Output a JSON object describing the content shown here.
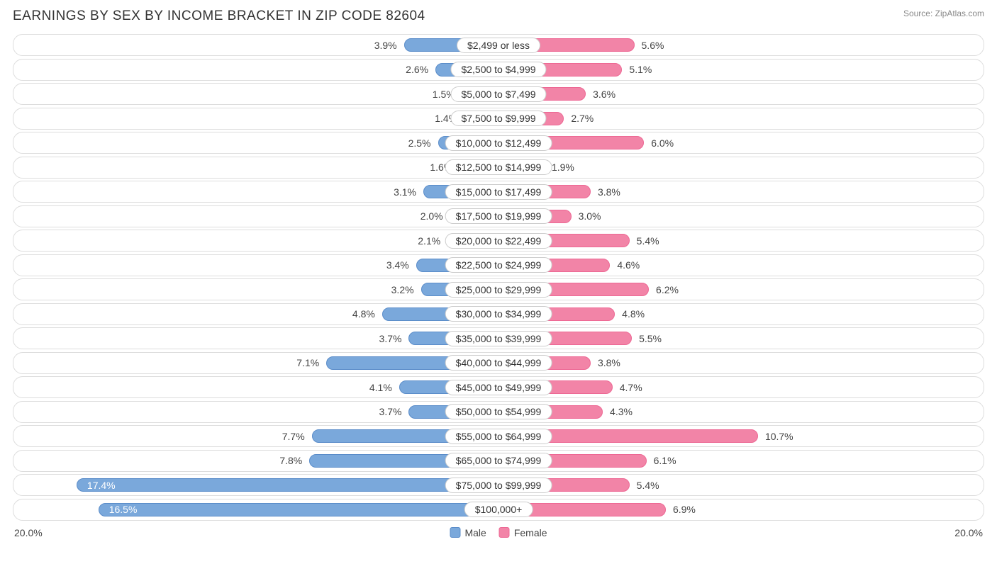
{
  "header": {
    "title": "EARNINGS BY SEX BY INCOME BRACKET IN ZIP CODE 82604",
    "source": "Source: ZipAtlas.com"
  },
  "chart": {
    "type": "diverging-bar",
    "axis_max_pct": 20.0,
    "axis_label_left": "20.0%",
    "axis_label_right": "20.0%",
    "colors": {
      "male_fill": "#7aa8db",
      "male_border": "#5a8cc9",
      "female_fill": "#f284a7",
      "female_border": "#ed6894",
      "row_border": "#dddddd",
      "background": "#ffffff",
      "text": "#444444",
      "label_border": "#cccccc"
    },
    "legend": {
      "male": "Male",
      "female": "Female"
    },
    "rows": [
      {
        "bracket": "$2,499 or less",
        "male": 3.9,
        "female": 5.6,
        "male_inside": false,
        "female_inside": false
      },
      {
        "bracket": "$2,500 to $4,999",
        "male": 2.6,
        "female": 5.1,
        "male_inside": false,
        "female_inside": false
      },
      {
        "bracket": "$5,000 to $7,499",
        "male": 1.5,
        "female": 3.6,
        "male_inside": false,
        "female_inside": false
      },
      {
        "bracket": "$7,500 to $9,999",
        "male": 1.4,
        "female": 2.7,
        "male_inside": false,
        "female_inside": false
      },
      {
        "bracket": "$10,000 to $12,499",
        "male": 2.5,
        "female": 6.0,
        "male_inside": false,
        "female_inside": false
      },
      {
        "bracket": "$12,500 to $14,999",
        "male": 1.6,
        "female": 1.9,
        "male_inside": false,
        "female_inside": false
      },
      {
        "bracket": "$15,000 to $17,499",
        "male": 3.1,
        "female": 3.8,
        "male_inside": false,
        "female_inside": false
      },
      {
        "bracket": "$17,500 to $19,999",
        "male": 2.0,
        "female": 3.0,
        "male_inside": false,
        "female_inside": false
      },
      {
        "bracket": "$20,000 to $22,499",
        "male": 2.1,
        "female": 5.4,
        "male_inside": false,
        "female_inside": false
      },
      {
        "bracket": "$22,500 to $24,999",
        "male": 3.4,
        "female": 4.6,
        "male_inside": false,
        "female_inside": false
      },
      {
        "bracket": "$25,000 to $29,999",
        "male": 3.2,
        "female": 6.2,
        "male_inside": false,
        "female_inside": false
      },
      {
        "bracket": "$30,000 to $34,999",
        "male": 4.8,
        "female": 4.8,
        "male_inside": false,
        "female_inside": false
      },
      {
        "bracket": "$35,000 to $39,999",
        "male": 3.7,
        "female": 5.5,
        "male_inside": false,
        "female_inside": false
      },
      {
        "bracket": "$40,000 to $44,999",
        "male": 7.1,
        "female": 3.8,
        "male_inside": false,
        "female_inside": false
      },
      {
        "bracket": "$45,000 to $49,999",
        "male": 4.1,
        "female": 4.7,
        "male_inside": false,
        "female_inside": false
      },
      {
        "bracket": "$50,000 to $54,999",
        "male": 3.7,
        "female": 4.3,
        "male_inside": false,
        "female_inside": false
      },
      {
        "bracket": "$55,000 to $64,999",
        "male": 7.7,
        "female": 10.7,
        "male_inside": false,
        "female_inside": false
      },
      {
        "bracket": "$65,000 to $74,999",
        "male": 7.8,
        "female": 6.1,
        "male_inside": false,
        "female_inside": false
      },
      {
        "bracket": "$75,000 to $99,999",
        "male": 17.4,
        "female": 5.4,
        "male_inside": true,
        "female_inside": false
      },
      {
        "bracket": "$100,000+",
        "male": 16.5,
        "female": 6.9,
        "male_inside": true,
        "female_inside": false
      }
    ]
  }
}
